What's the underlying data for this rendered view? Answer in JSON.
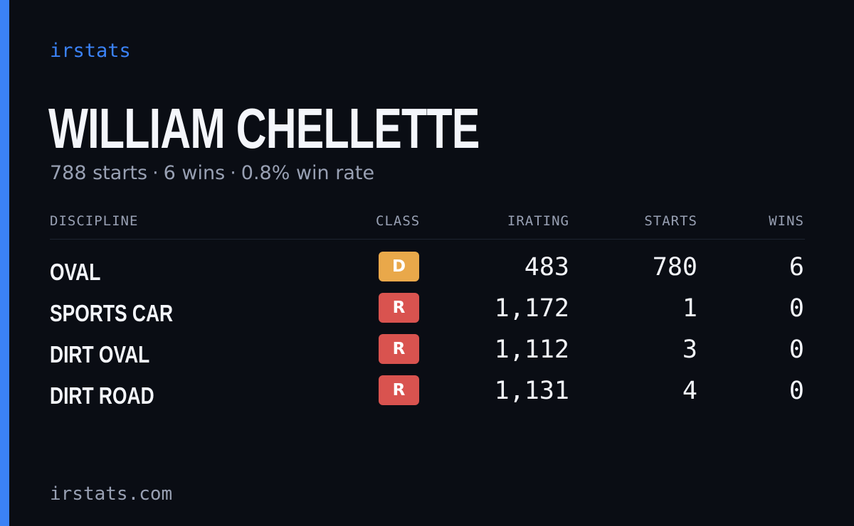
{
  "brand": "irstats",
  "driver": {
    "name": "WILLIAM CHELLETTE",
    "summary": {
      "starts": "788 starts",
      "wins": "6 wins",
      "win_rate": "0.8% win rate",
      "separator": "·"
    }
  },
  "table": {
    "headers": {
      "discipline": "DISCIPLINE",
      "class": "CLASS",
      "irating": "IRATING",
      "starts": "STARTS",
      "wins": "WINS"
    },
    "rows": [
      {
        "discipline": "OVAL",
        "class": "D",
        "class_color": "#e9a84a",
        "irating": "483",
        "starts": "780",
        "wins": "6"
      },
      {
        "discipline": "SPORTS CAR",
        "class": "R",
        "class_color": "#d9534f",
        "irating": "1,172",
        "starts": "1",
        "wins": "0"
      },
      {
        "discipline": "DIRT OVAL",
        "class": "R",
        "class_color": "#d9534f",
        "irating": "1,112",
        "starts": "3",
        "wins": "0"
      },
      {
        "discipline": "DIRT ROAD",
        "class": "R",
        "class_color": "#d9534f",
        "irating": "1,131",
        "starts": "4",
        "wins": "0"
      }
    ]
  },
  "footer": {
    "url": "irstats.com"
  },
  "colors": {
    "accent": "#3b82f6",
    "background": "#0a0d14",
    "text_primary": "#f4f6fb",
    "text_muted": "#98a0b3"
  }
}
